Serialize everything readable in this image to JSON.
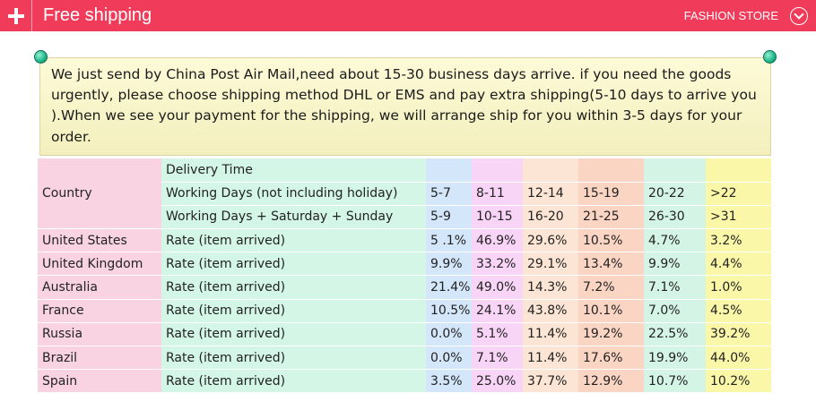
{
  "header": {
    "title": "Free shipping",
    "store": "FASHION STORE",
    "colors": {
      "bar": "#f03c5a"
    },
    "icons": [
      "plus-icon",
      "chevron-down-icon"
    ]
  },
  "note": {
    "text": "We just send by China Post Air Mail,need about 15-30 business days arrive. if you need the goods urgently, please choose shipping method DHL or EMS and pay extra shipping(5-10 days to arrive you ).When we see your payment for the shipping, we will arrange ship for you within 3-5 days for your order."
  },
  "table": {
    "country_header": "Country",
    "delivery_header": "Delivery Time",
    "working_days": {
      "label": "Working Days (not including holiday)",
      "ranges": [
        "5-7",
        "8-11",
        "12-14",
        "15-19",
        "20-22",
        ">22"
      ]
    },
    "working_days_weekend": {
      "label": "Working Days + Saturday + Sunday",
      "ranges": [
        "5-9",
        "10-15",
        "16-20",
        "21-25",
        "26-30",
        ">31"
      ]
    },
    "rows": [
      {
        "country": "United States",
        "rate_label": "Rate (item arrived)",
        "values": [
          "5 .1%",
          "46.9%",
          "29.6%",
          "10.5%",
          "4.7%",
          "3.2%"
        ]
      },
      {
        "country": "United Kingdom",
        "rate_label": "Rate (item arrived)",
        "values": [
          "9.9%",
          "33.2%",
          "29.1%",
          "13.4%",
          "9.9%",
          "4.4%"
        ]
      },
      {
        "country": "Australia",
        "rate_label": "Rate (item arrived)",
        "values": [
          "21.4%",
          "49.0%",
          "14.3%",
          "7.2%",
          "7.1%",
          "1.0%"
        ]
      },
      {
        "country": "France",
        "rate_label": "Rate (item arrived)",
        "values": [
          "10.5%",
          "24.1%",
          "43.8%",
          "10.1%",
          "7.0%",
          "4.5%"
        ]
      },
      {
        "country": "Russia",
        "rate_label": "Rate (item arrived)",
        "values": [
          "0.0%",
          "5.1%",
          "11.4%",
          "19.2%",
          "22.5%",
          "39.2%"
        ]
      },
      {
        "country": "Brazil",
        "rate_label": "Rate (item arrived)",
        "values": [
          "0.0%",
          "7.1%",
          "11.4%",
          "17.6%",
          "19.9%",
          "44.0%"
        ]
      },
      {
        "country": "Spain",
        "rate_label": "Rate (item arrived)",
        "values": [
          "3.5%",
          "25.0%",
          "37.7%",
          "12.9%",
          "10.7%",
          "10.2%"
        ]
      }
    ]
  }
}
